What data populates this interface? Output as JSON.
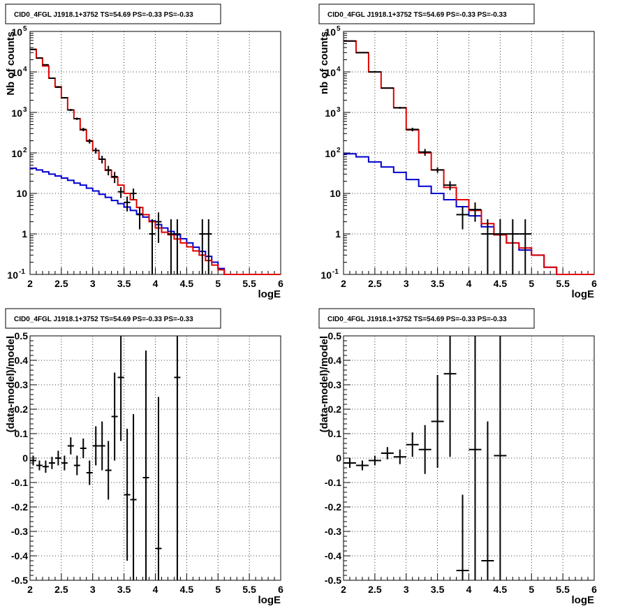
{
  "chart_data": [
    {
      "type": "histogram",
      "title": "CID0_4FGL J1918.1+3752 TS=54.69 PS=-0.33 PS=-0.33",
      "xlabel": "logE",
      "ylabel": "Nb of counts",
      "xlim": [
        2,
        6
      ],
      "ylim": [
        0.1,
        100000
      ],
      "yscale": "log",
      "grid": true,
      "xticks": [
        "2",
        "2.5",
        "3",
        "3.5",
        "4",
        "4.5",
        "5",
        "5.5",
        "6"
      ],
      "yticks": [
        {
          "v": 0.1,
          "base": "10",
          "exp": "-1"
        },
        {
          "v": 1,
          "text": "1"
        },
        {
          "v": 10,
          "text": "10"
        },
        {
          "v": 100,
          "base": "10",
          "exp": "2"
        },
        {
          "v": 1000,
          "base": "10",
          "exp": "3"
        },
        {
          "v": 10000,
          "base": "10",
          "exp": "4"
        },
        {
          "v": 100000,
          "base": "10",
          "exp": "5"
        }
      ],
      "model_total": {
        "color": "#e00000",
        "edges": [
          2.0,
          2.1,
          2.2,
          2.3,
          2.4,
          2.5,
          2.6,
          2.7,
          2.8,
          2.9,
          3.0,
          3.1,
          3.2,
          3.3,
          3.4,
          3.5,
          3.6,
          3.7,
          3.8,
          3.9,
          4.0,
          4.1,
          4.2,
          4.3,
          4.4,
          4.5,
          4.6,
          4.7,
          4.8,
          4.9,
          5.0,
          5.1,
          5.2,
          5.3,
          5.4,
          5.5,
          5.6,
          5.7,
          5.8,
          5.9,
          6.0
        ],
        "values": [
          36000,
          22000,
          14000,
          7000,
          4300,
          2300,
          1150,
          700,
          370,
          200,
          115,
          70,
          37,
          25,
          16,
          10,
          7,
          4.5,
          3,
          2,
          1.4,
          1.1,
          0.95,
          0.75,
          0.6,
          0.48,
          0.38,
          0.3,
          0.22,
          0.17,
          0.13,
          0.1,
          0.1,
          0.1,
          0.1,
          0.1,
          0.1,
          0.1,
          0.1,
          0.1
        ]
      },
      "model_background": {
        "color": "#0000d0",
        "edges": [
          2.0,
          2.1,
          2.2,
          2.3,
          2.4,
          2.5,
          2.6,
          2.7,
          2.8,
          2.9,
          3.0,
          3.1,
          3.2,
          3.3,
          3.4,
          3.5,
          3.6,
          3.7,
          3.8,
          3.9,
          4.0,
          4.1,
          4.2,
          4.3,
          4.4,
          4.5,
          4.6,
          4.7,
          4.8,
          4.9,
          5.0,
          5.1,
          5.2,
          5.3,
          5.4,
          5.5,
          5.6,
          5.7,
          5.8,
          5.9,
          6.0
        ],
        "values": [
          42,
          38,
          34,
          30,
          27,
          24,
          21,
          18,
          16,
          13.5,
          11.5,
          9.5,
          8,
          6.7,
          5.6,
          4.6,
          3.8,
          3.1,
          2.6,
          2.1,
          1.7,
          1.4,
          1.15,
          0.95,
          0.76,
          0.6,
          0.47,
          0.37,
          0.28,
          0.2,
          0.14,
          0.1,
          0.1,
          0.1,
          0.1,
          0.1,
          0.1,
          0.1,
          0.1,
          0.1
        ]
      },
      "data_points": [
        {
          "x": 2.05,
          "y": 36000,
          "lo": 35600,
          "hi": 36400
        },
        {
          "x": 2.15,
          "y": 22000,
          "lo": 21700,
          "hi": 22300
        },
        {
          "x": 2.25,
          "y": 15000,
          "lo": 14700,
          "hi": 15300
        },
        {
          "x": 2.35,
          "y": 7000,
          "lo": 6800,
          "hi": 7200
        },
        {
          "x": 2.45,
          "y": 4200,
          "lo": 4050,
          "hi": 4350
        },
        {
          "x": 2.55,
          "y": 2300,
          "lo": 2200,
          "hi": 2400
        },
        {
          "x": 2.65,
          "y": 1150,
          "lo": 1080,
          "hi": 1220
        },
        {
          "x": 2.75,
          "y": 700,
          "lo": 650,
          "hi": 750
        },
        {
          "x": 2.85,
          "y": 380,
          "lo": 342,
          "hi": 418
        },
        {
          "x": 2.95,
          "y": 195,
          "lo": 170,
          "hi": 220
        },
        {
          "x": 3.05,
          "y": 115,
          "lo": 96,
          "hi": 134
        },
        {
          "x": 3.15,
          "y": 70,
          "lo": 55,
          "hi": 85
        },
        {
          "x": 3.25,
          "y": 38,
          "lo": 28,
          "hi": 48
        },
        {
          "x": 3.35,
          "y": 26,
          "lo": 18,
          "hi": 34
        },
        {
          "x": 3.45,
          "y": 11,
          "lo": 7.7,
          "hi": 14.3
        },
        {
          "x": 3.55,
          "y": 6,
          "lo": 3.6,
          "hi": 8.4
        },
        {
          "x": 3.65,
          "y": 10,
          "lo": 6.8,
          "hi": 13.2
        },
        {
          "x": 3.75,
          "y": 3,
          "lo": 1.3,
          "hi": 4.7
        },
        {
          "x": 3.95,
          "y": 1,
          "lo": 0.1,
          "hi": 2.3
        },
        {
          "x": 4.05,
          "y": 2,
          "lo": 0.6,
          "hi": 3.4
        },
        {
          "x": 4.25,
          "y": 1,
          "lo": 0.1,
          "hi": 2.3
        },
        {
          "x": 4.35,
          "y": 1,
          "lo": 0.1,
          "hi": 2.3
        },
        {
          "x": 4.75,
          "y": 1,
          "lo": 0.1,
          "hi": 2.3
        },
        {
          "x": 4.85,
          "y": 1,
          "lo": 0.1,
          "hi": 2.3
        }
      ]
    },
    {
      "type": "histogram",
      "title": "CID0_4FGL J1918.1+3752 TS=54.69 PS=-0.33 PS=-0.33",
      "xlabel": "logE",
      "ylabel": "nb of counts",
      "xlim": [
        2,
        6
      ],
      "ylim": [
        0.1,
        100000
      ],
      "yscale": "log",
      "grid": true,
      "xticks": [
        "2",
        "2.5",
        "3",
        "3.5",
        "4",
        "4.5",
        "5",
        "5.5",
        "6"
      ],
      "yticks": [
        {
          "v": 0.1,
          "base": "10",
          "exp": "-1"
        },
        {
          "v": 1,
          "text": "1"
        },
        {
          "v": 10,
          "text": "10"
        },
        {
          "v": 100,
          "base": "10",
          "exp": "2"
        },
        {
          "v": 1000,
          "base": "10",
          "exp": "3"
        },
        {
          "v": 10000,
          "base": "10",
          "exp": "4"
        },
        {
          "v": 100000,
          "base": "10",
          "exp": "5"
        }
      ],
      "model_total": {
        "color": "#e00000",
        "edges": [
          2.0,
          2.2,
          2.4,
          2.6,
          2.8,
          3.0,
          3.2,
          3.4,
          3.6,
          3.8,
          4.0,
          4.2,
          4.4,
          4.6,
          4.8,
          5.0,
          5.2,
          5.4,
          5.6,
          5.8,
          6.0
        ],
        "values": [
          58000,
          30000,
          10000,
          4000,
          1300,
          370,
          100,
          38,
          14,
          7,
          3.8,
          1.8,
          0.95,
          0.6,
          0.45,
          0.3,
          0.15,
          0.1,
          0.1,
          0.1
        ]
      },
      "model_background": {
        "color": "#0000d0",
        "edges": [
          2.0,
          2.2,
          2.4,
          2.6,
          2.8,
          3.0,
          3.2,
          3.4,
          3.6,
          3.8,
          4.0,
          4.2,
          4.4,
          4.6,
          4.8,
          5.0,
          5.2,
          5.4,
          5.6,
          5.8,
          6.0
        ],
        "values": [
          95,
          80,
          60,
          45,
          33,
          22,
          15,
          10,
          7,
          4.7,
          2.8,
          1.5,
          0.95,
          0.6,
          0.4,
          0.3,
          0.15,
          0.1,
          0.1,
          0.1
        ]
      },
      "data_points": [
        {
          "x": 2.1,
          "y": 58000,
          "lo": 57500,
          "hi": 58500
        },
        {
          "x": 2.3,
          "y": 30000,
          "lo": 29700,
          "hi": 30300
        },
        {
          "x": 2.5,
          "y": 10000,
          "lo": 9800,
          "hi": 10200
        },
        {
          "x": 2.7,
          "y": 4000,
          "lo": 3870,
          "hi": 4130
        },
        {
          "x": 2.9,
          "y": 1300,
          "lo": 1230,
          "hi": 1370
        },
        {
          "x": 3.1,
          "y": 380,
          "lo": 341,
          "hi": 419
        },
        {
          "x": 3.3,
          "y": 105,
          "lo": 85,
          "hi": 125
        },
        {
          "x": 3.5,
          "y": 38,
          "lo": 32,
          "hi": 44
        },
        {
          "x": 3.7,
          "y": 16,
          "lo": 12,
          "hi": 20
        },
        {
          "x": 3.9,
          "y": 3,
          "lo": 1.3,
          "hi": 4.7
        },
        {
          "x": 4.1,
          "y": 4,
          "lo": 2,
          "hi": 6
        },
        {
          "x": 4.3,
          "y": 1,
          "lo": 0.1,
          "hi": 2.3
        },
        {
          "x": 4.5,
          "y": 1,
          "lo": 0.1,
          "hi": 2.3
        },
        {
          "x": 4.7,
          "y": 1,
          "lo": 0.1,
          "hi": 2.3
        },
        {
          "x": 4.9,
          "y": 1,
          "lo": 0.1,
          "hi": 2.3
        }
      ]
    },
    {
      "type": "scatter",
      "title": "CID0_4FGL J1918.1+3752 TS=54.69 PS=-0.33 PS=-0.33",
      "xlabel": "logE",
      "ylabel": "(data-model)/model",
      "xlim": [
        2,
        6
      ],
      "ylim": [
        -0.5,
        0.5
      ],
      "yscale": "linear",
      "grid": true,
      "xticks": [
        "2",
        "2.5",
        "3",
        "3.5",
        "4",
        "4.5",
        "5",
        "5.5",
        "6"
      ],
      "yticks": [
        "-0.5",
        "-0.4",
        "-0.3",
        "-0.2",
        "-0.1",
        "0",
        "0.1",
        "0.2",
        "0.3",
        "0.4",
        "0.5"
      ],
      "points": [
        {
          "x": 2.05,
          "y": -0.01,
          "err": 0.02
        },
        {
          "x": 2.15,
          "y": -0.03,
          "err": 0.02
        },
        {
          "x": 2.25,
          "y": -0.035,
          "err": 0.025
        },
        {
          "x": 2.35,
          "y": -0.02,
          "err": 0.025
        },
        {
          "x": 2.45,
          "y": 0.0,
          "err": 0.03
        },
        {
          "x": 2.55,
          "y": -0.02,
          "err": 0.03
        },
        {
          "x": 2.65,
          "y": 0.05,
          "err": 0.035
        },
        {
          "x": 2.75,
          "y": -0.03,
          "err": 0.04
        },
        {
          "x": 2.85,
          "y": 0.04,
          "err": 0.04
        },
        {
          "x": 2.95,
          "y": -0.06,
          "err": 0.05
        },
        {
          "x": 3.05,
          "y": 0.05,
          "err": 0.08
        },
        {
          "x": 3.15,
          "y": 0.05,
          "err": 0.1
        },
        {
          "x": 3.25,
          "y": -0.05,
          "err": 0.12
        },
        {
          "x": 3.35,
          "y": 0.17,
          "err": 0.18
        },
        {
          "x": 3.45,
          "y": 0.33,
          "err": 0.26
        },
        {
          "x": 3.55,
          "y": -0.15,
          "err": 0.27
        },
        {
          "x": 3.65,
          "y": -0.17,
          "err": 0.35
        },
        {
          "x": 3.85,
          "y": -0.08,
          "err": 0.52
        },
        {
          "x": 4.05,
          "y": -0.37,
          "err": 0.62
        },
        {
          "x": 4.35,
          "y": 0.33,
          "err": 1.0
        }
      ]
    },
    {
      "type": "scatter",
      "title": "CID0_4FGL J1918.1+3752 TS=54.69 PS=-0.33 PS=-0.33",
      "xlabel": "logE",
      "ylabel": "(data-model)/model",
      "xlim": [
        2,
        6
      ],
      "ylim": [
        -0.5,
        0.5
      ],
      "yscale": "linear",
      "grid": true,
      "xticks": [
        "2",
        "2.5",
        "3",
        "3.5",
        "4",
        "4.5",
        "5",
        "5.5",
        "6"
      ],
      "yticks": [
        "-0.5",
        "-0.4",
        "-0.3",
        "-0.2",
        "-0.1",
        "0",
        "0.1",
        "0.2",
        "0.3",
        "0.4",
        "0.5"
      ],
      "points": [
        {
          "x": 2.1,
          "y": -0.02,
          "err": 0.02
        },
        {
          "x": 2.3,
          "y": -0.03,
          "err": 0.02
        },
        {
          "x": 2.5,
          "y": -0.01,
          "err": 0.02
        },
        {
          "x": 2.7,
          "y": 0.02,
          "err": 0.025
        },
        {
          "x": 2.9,
          "y": 0.005,
          "err": 0.03
        },
        {
          "x": 3.1,
          "y": 0.055,
          "err": 0.05
        },
        {
          "x": 3.3,
          "y": 0.035,
          "err": 0.1
        },
        {
          "x": 3.5,
          "y": 0.15,
          "err": 0.19
        },
        {
          "x": 3.7,
          "y": 0.345,
          "err": 0.34
        },
        {
          "x": 3.9,
          "y": -0.46,
          "err": 0.31
        },
        {
          "x": 4.1,
          "y": 0.035,
          "err": 0.55
        },
        {
          "x": 4.3,
          "y": -0.42,
          "err": 0.57
        },
        {
          "x": 4.5,
          "y": 0.01,
          "err": 1.0
        }
      ]
    }
  ]
}
